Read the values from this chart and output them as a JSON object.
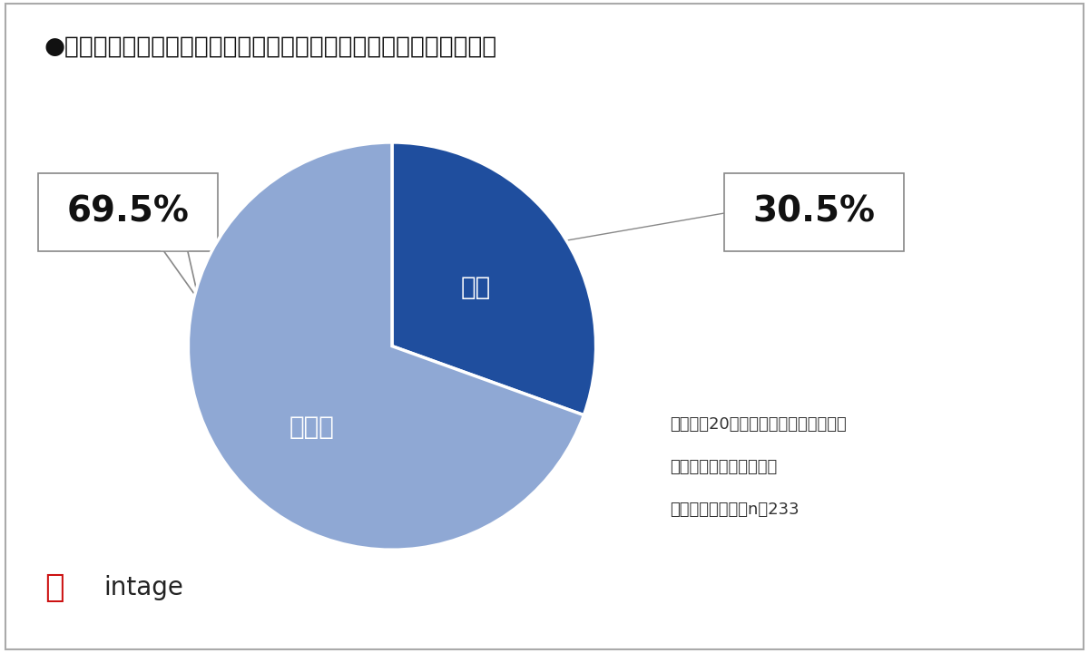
{
  "title": "●今度のお年縁をスマホのキャッシュレス決済でもらいたいですか？",
  "slices": [
    30.5,
    69.5
  ],
  "labels": [
    "はい",
    "いいえ"
  ],
  "colors": [
    "#1f4e9e",
    "#8fa8d4"
  ],
  "pct_labels": [
    "30.5%",
    "69.5%"
  ],
  "note_line1": "ベース：20歳以下かつ今度のお正月に",
  "note_line2": "お年縁をもらう予定の人",
  "note_line3": "サンプルサイズ：n＝233",
  "background_color": "#ffffff",
  "border_color": "#cccccc",
  "title_fontsize": 19,
  "label_fontsize": 20,
  "pct_fontsize": 28,
  "note_fontsize": 13,
  "intage_text": "intage",
  "intage_fontsize": 20
}
